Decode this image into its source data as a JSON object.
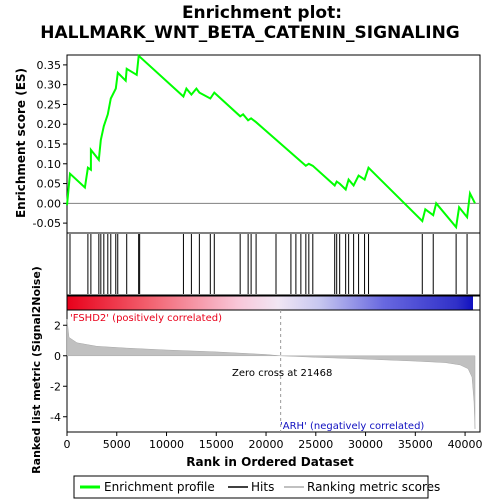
{
  "chart_data": {
    "type": "line",
    "title_line1": "Enrichment plot:",
    "title_line2": "HALLMARK_WNT_BETA_CATENIN_SIGNALING",
    "es_ylabel": "Enrichment score (ES)",
    "metric_ylabel": "Ranked list metric (Signal2Noise)",
    "xlabel": "Rank in Ordered Dataset",
    "xlim": [
      0,
      41500
    ],
    "xticks": [
      0,
      5000,
      10000,
      15000,
      20000,
      25000,
      30000,
      35000,
      40000
    ],
    "xtick_labels": [
      "0",
      "5000",
      "10000",
      "15000",
      "20000",
      "25000",
      "30000",
      "35000",
      "40000"
    ],
    "es_ylim": [
      -0.075,
      0.375
    ],
    "es_yticks": [
      -0.05,
      0.0,
      0.05,
      0.1,
      0.15,
      0.2,
      0.25,
      0.3,
      0.35
    ],
    "es_ytick_labels": [
      "-0.05",
      "0.00",
      "0.05",
      "0.10",
      "0.15",
      "0.20",
      "0.25",
      "0.30",
      "0.35"
    ],
    "metric_ylim": [
      -5,
      3
    ],
    "metric_yticks": [
      2,
      0,
      -2,
      -4
    ],
    "metric_ytick_labels": [
      "2",
      "0",
      "-2",
      "-4"
    ],
    "grid": false,
    "legend_position": "bottom",
    "series": [
      {
        "name": "Enrichment profile",
        "color": "#00ff00",
        "x": [
          0,
          300,
          1800,
          2100,
          2400,
          2400,
          3200,
          3400,
          3700,
          4100,
          4400,
          4900,
          5100,
          5900,
          6000,
          7000,
          7200,
          11700,
          12000,
          12500,
          13000,
          13300,
          14400,
          14800,
          17400,
          17700,
          18200,
          18500,
          19000,
          24000,
          24300,
          24700,
          26900,
          27100,
          27400,
          28000,
          28300,
          28800,
          29300,
          29900,
          30300,
          35700,
          36000,
          36800,
          37100,
          39100,
          39400,
          40200,
          40500,
          41000
        ],
        "y": [
          -0.005,
          0.075,
          0.04,
          0.09,
          0.085,
          0.135,
          0.11,
          0.16,
          0.195,
          0.225,
          0.265,
          0.29,
          0.33,
          0.31,
          0.34,
          0.325,
          0.373,
          0.27,
          0.29,
          0.275,
          0.29,
          0.28,
          0.265,
          0.28,
          0.22,
          0.225,
          0.21,
          0.215,
          0.205,
          0.095,
          0.1,
          0.095,
          0.045,
          0.055,
          0.05,
          0.035,
          0.06,
          0.045,
          0.07,
          0.06,
          0.09,
          -0.045,
          -0.015,
          -0.03,
          0.0,
          -0.06,
          -0.01,
          -0.035,
          0.025,
          0.0
        ]
      },
      {
        "name": "Hits",
        "color": "#000000",
        "x": [
          300,
          2100,
          2400,
          3200,
          3400,
          3700,
          4100,
          4400,
          4900,
          5100,
          6000,
          7200,
          7300,
          11700,
          12500,
          13300,
          14400,
          14800,
          17400,
          18200,
          18500,
          19000,
          21000,
          22500,
          23000,
          23500,
          24000,
          24300,
          24700,
          26900,
          27100,
          27400,
          28000,
          28300,
          28800,
          29300,
          29900,
          30300,
          35700,
          36800,
          39100,
          40200
        ]
      },
      {
        "name": "Ranking metric scores",
        "color": "#c0c0c0",
        "x": [
          0,
          200,
          1000,
          3000,
          6000,
          10000,
          15000,
          20000,
          21468,
          25000,
          30000,
          35000,
          38000,
          39500,
          40300,
          40700,
          40900,
          41000
        ],
        "y": [
          2.4,
          1.2,
          0.85,
          0.62,
          0.5,
          0.38,
          0.25,
          0.08,
          0.0,
          -0.1,
          -0.22,
          -0.35,
          -0.45,
          -0.6,
          -0.85,
          -1.4,
          -3.0,
          -4.8
        ]
      }
    ],
    "annotations": {
      "positive_label": "'FSHD2' (positively correlated)",
      "negative_label": "'ARH' (negatively correlated)",
      "zero_cross_label": "Zero cross at 21468",
      "zero_cross_x": 21468
    },
    "legend": [
      "Enrichment profile",
      "Hits",
      "Ranking metric scores"
    ]
  }
}
